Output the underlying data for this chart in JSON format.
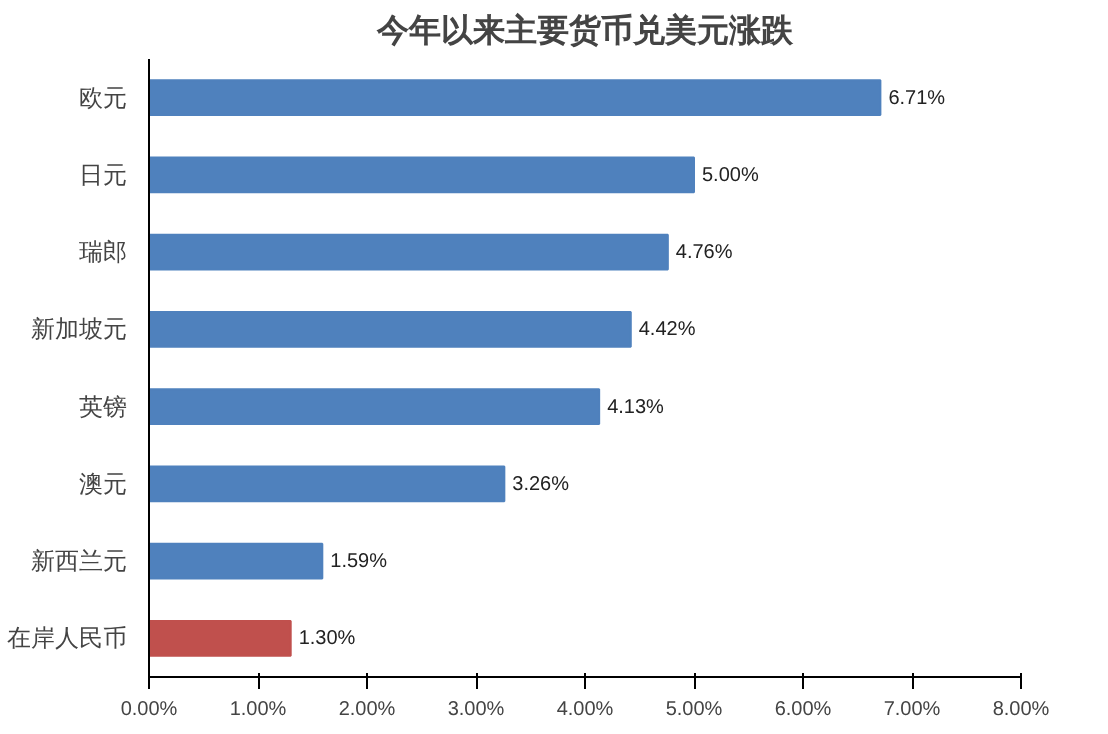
{
  "chart_data": {
    "type": "bar",
    "orientation": "horizontal",
    "title": "今年以来主要货币兑美元涨跌",
    "categories": [
      "欧元",
      "日元",
      "瑞郎",
      "新加坡元",
      "英镑",
      "澳元",
      "新西兰元",
      "在岸人民币"
    ],
    "values": [
      6.71,
      5.0,
      4.76,
      4.42,
      4.13,
      3.26,
      1.59,
      1.3
    ],
    "colors": [
      "#4f81bd",
      "#4f81bd",
      "#4f81bd",
      "#4f81bd",
      "#4f81bd",
      "#4f81bd",
      "#4f81bd",
      "#c0504d"
    ],
    "value_labels": [
      "6.71%",
      "5.00%",
      "4.76%",
      "4.42%",
      "4.13%",
      "3.26%",
      "1.59%",
      "1.30%"
    ],
    "xlim": [
      0,
      8
    ],
    "xticks": [
      {
        "value": 0,
        "label": "0.00%"
      },
      {
        "value": 1,
        "label": "1.00%"
      },
      {
        "value": 2,
        "label": "2.00%"
      },
      {
        "value": 3,
        "label": "3.00%"
      },
      {
        "value": 4,
        "label": "4.00%"
      },
      {
        "value": 5,
        "label": "5.00%"
      },
      {
        "value": 6,
        "label": "6.00%"
      },
      {
        "value": 7,
        "label": "7.00%"
      },
      {
        "value": 8,
        "label": "8.00%"
      }
    ],
    "grid": false
  }
}
